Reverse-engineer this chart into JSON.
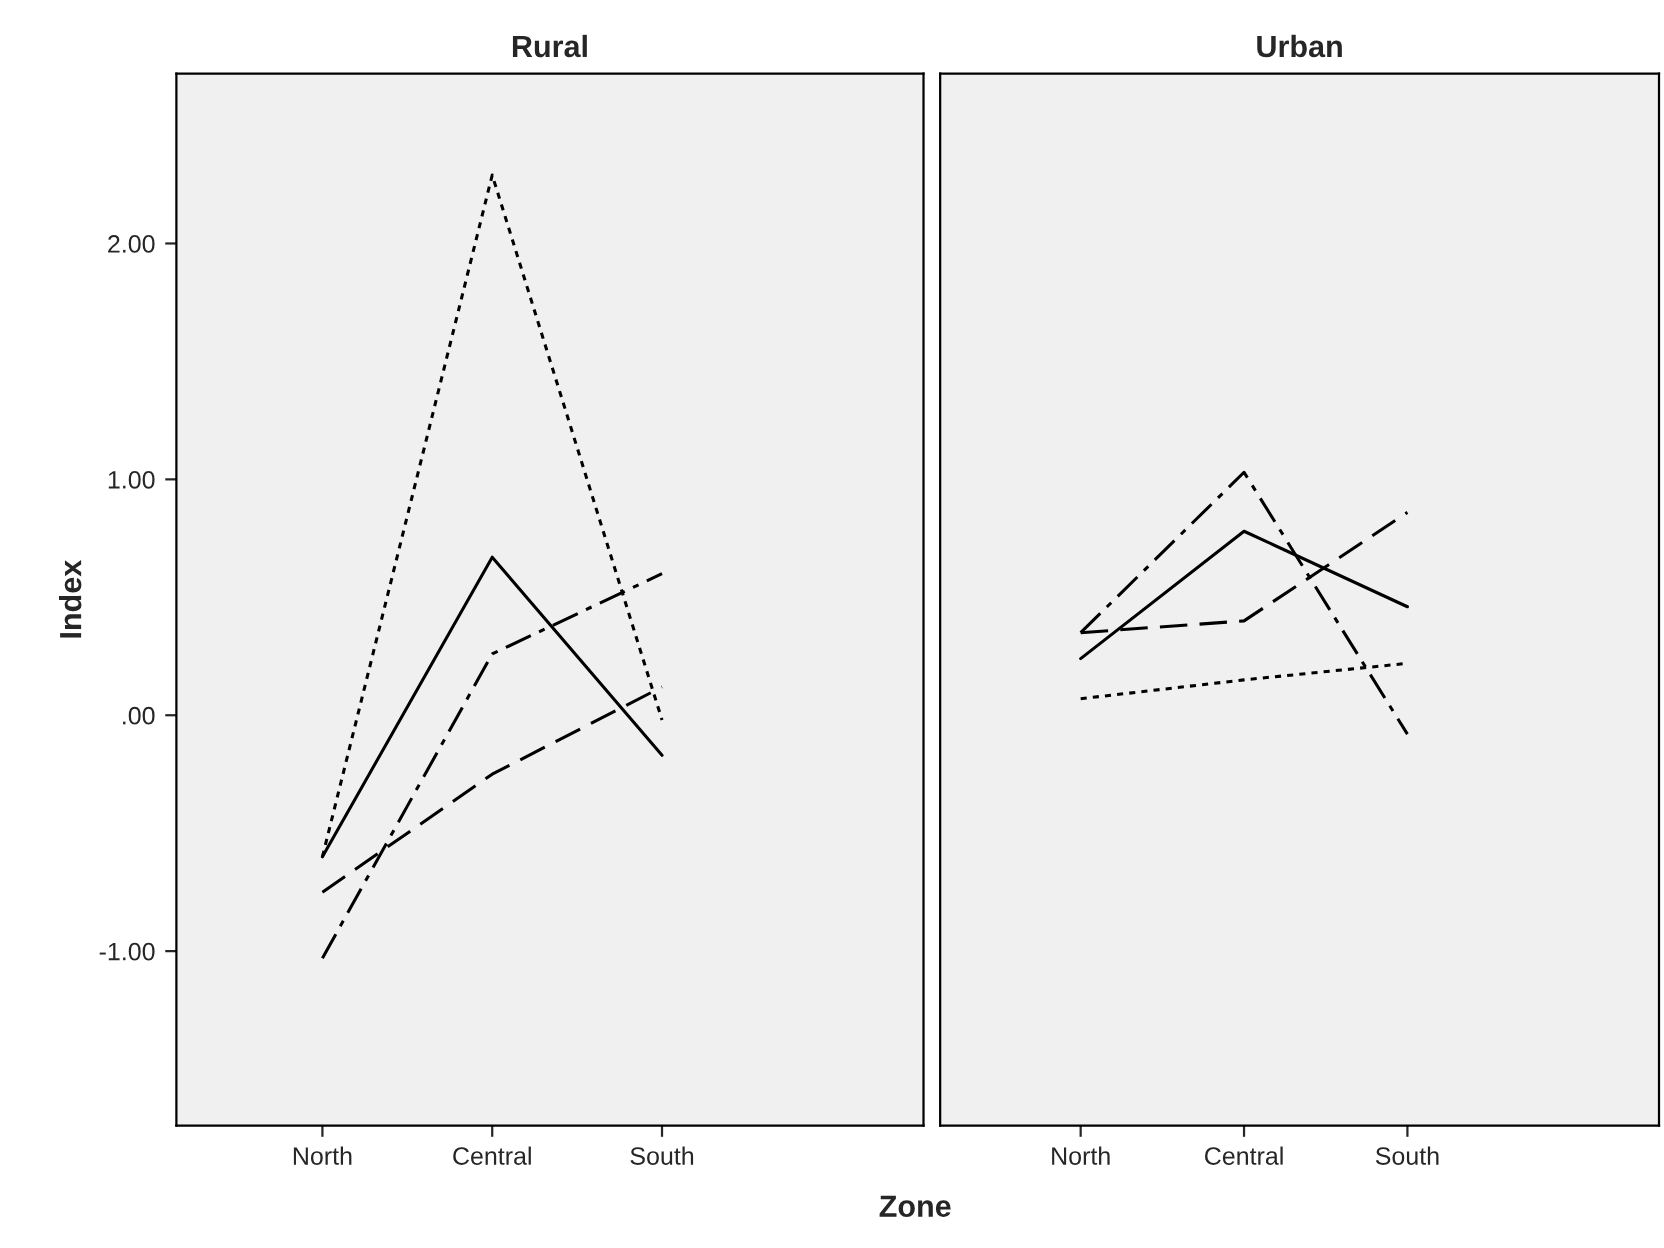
{
  "chart_data": [
    {
      "type": "line",
      "title": "Rural",
      "xlabel": "Zone",
      "ylabel": "Index",
      "categories": [
        "North",
        "Central",
        "South"
      ],
      "ylim": [
        -1.74,
        2.72
      ],
      "yticks": [
        {
          "value": -1,
          "label": "-1.00"
        },
        {
          "value": 0,
          "label": ".00"
        },
        {
          "value": 1,
          "label": "1.00"
        },
        {
          "value": 2,
          "label": "2.00"
        }
      ],
      "grid": false,
      "legend": false,
      "series": [
        {
          "color": "#000000",
          "line_style": "dotted",
          "values": [
            -0.6,
            2.29,
            -0.02
          ]
        },
        {
          "color": "#000000",
          "line_style": "solid",
          "values": [
            -0.6,
            0.67,
            -0.17
          ]
        },
        {
          "color": "#000000",
          "line_style": "dashdot",
          "values": [
            -1.03,
            0.26,
            0.6
          ]
        },
        {
          "color": "#000000",
          "line_style": "dashed",
          "values": [
            -0.75,
            -0.25,
            0.12
          ]
        }
      ]
    },
    {
      "type": "line",
      "title": "Urban",
      "categories": [
        "North",
        "Central",
        "South"
      ],
      "ylim": [
        -1.74,
        2.72
      ],
      "tick_labels": "x",
      "grid": false,
      "legend": false,
      "series": [
        {
          "color": "#000000",
          "line_style": "dotted",
          "values": [
            0.07,
            0.15,
            0.22
          ]
        },
        {
          "color": "#000000",
          "line_style": "solid",
          "values": [
            0.24,
            0.78,
            0.46
          ]
        },
        {
          "color": "#000000",
          "line_style": "dashdot",
          "values": [
            0.35,
            1.03,
            -0.08
          ]
        },
        {
          "color": "#000000",
          "line_style": "dashed",
          "values": [
            0.35,
            0.4,
            0.86
          ]
        }
      ]
    }
  ]
}
